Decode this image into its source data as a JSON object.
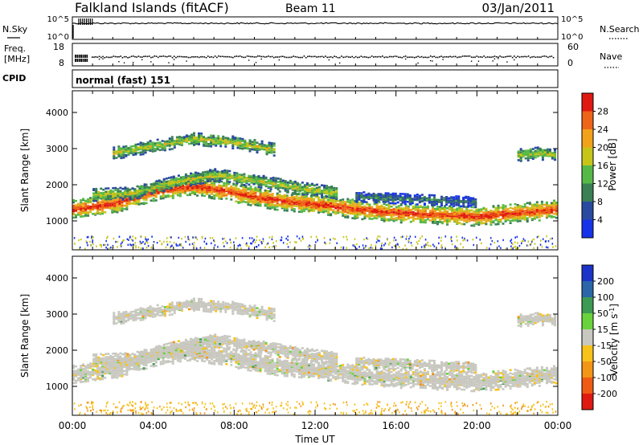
{
  "header": {
    "station": "Falkland Islands (fitACF)",
    "beam": "Beam 11",
    "date": "03/Jan/2011"
  },
  "strip": {
    "nsky_label": "N.Sky",
    "nsearch_label": "N.Search",
    "nsky_ticks": [
      "10^5",
      "10^0"
    ],
    "nsearch_ticks": [
      "10^5",
      "10^0"
    ],
    "freq_label_1": "Freq.",
    "freq_label_2": "[MHz]",
    "freq_ticks": [
      "18",
      "8"
    ],
    "nave_label": "Nave",
    "nave_ticks": [
      "60",
      "0"
    ],
    "cpid_label": "CPID",
    "cpid_text": "normal (fast) 151"
  },
  "chart_data": [
    {
      "type": "heatmap",
      "name": "power",
      "xlabel": "",
      "ylabel": "Slant Range [km]",
      "x_range_hours": [
        0,
        24
      ],
      "ylim": [
        200,
        4600
      ],
      "y_ticks": [
        1000,
        2000,
        3000,
        4000
      ],
      "colorbar": {
        "label": "Power [dB]",
        "ticks": [
          "4",
          "8",
          "12",
          "16",
          "20",
          "24",
          "28"
        ],
        "colors": [
          "#1733e8",
          "#2a4aa0",
          "#3b7f55",
          "#56b947",
          "#c6c419",
          "#f1a21b",
          "#ee6418",
          "#e01a12"
        ]
      },
      "echo_bands": [
        {
          "t": [
            0,
            2,
            4,
            6,
            8,
            10,
            12,
            14,
            16,
            18,
            20,
            22,
            24
          ],
          "range_km": [
            1350,
            1500,
            1850,
            2000,
            1800,
            1600,
            1500,
            1350,
            1250,
            1200,
            1150,
            1250,
            1350
          ],
          "level": "high"
        },
        {
          "t": [
            1,
            3,
            5,
            7,
            9,
            11,
            13
          ],
          "range_km": [
            1750,
            1800,
            2100,
            2300,
            2150,
            1950,
            1800
          ],
          "level": "mid"
        },
        {
          "t": [
            2,
            4,
            6,
            8,
            10
          ],
          "range_km": [
            2900,
            3100,
            3300,
            3200,
            3000
          ],
          "level": "mid"
        },
        {
          "t": [
            14,
            16,
            18,
            20
          ],
          "range_km": [
            1700,
            1650,
            1600,
            1550
          ],
          "level": "low"
        },
        {
          "t": [
            22,
            23,
            24
          ],
          "range_km": [
            2850,
            2900,
            2850
          ],
          "level": "mid"
        }
      ]
    },
    {
      "type": "heatmap",
      "name": "velocity",
      "xlabel": "Time UT",
      "ylabel": "Slant Range [km]",
      "x_range_hours": [
        0,
        24
      ],
      "x_ticks": [
        "00:00",
        "04:00",
        "08:00",
        "12:00",
        "16:00",
        "20:00",
        "00:00"
      ],
      "ylim": [
        200,
        4600
      ],
      "y_ticks": [
        1000,
        2000,
        3000,
        4000
      ],
      "colorbar": {
        "label": "Velocity [m s-1]",
        "ticks": [
          "200",
          "100",
          "50",
          "15",
          "-15",
          "-50",
          "-100",
          "-200"
        ],
        "colors": [
          "#1c33c8",
          "#2a66a8",
          "#3c9a52",
          "#6ad23c",
          "#c8c8c0",
          "#f7c21a",
          "#f39516",
          "#ef5a14",
          "#e01a12"
        ]
      }
    }
  ]
}
